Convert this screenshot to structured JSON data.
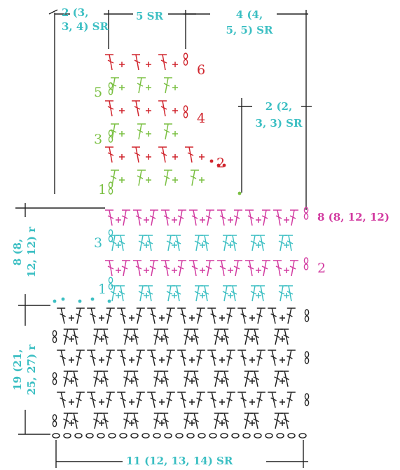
{
  "colors": {
    "black": "#222222",
    "teal": "#3cbfc3",
    "magenta": "#d23aa0",
    "green": "#7bc043",
    "red": "#d0252d"
  },
  "dimensions": {
    "top_left": "2 (3,\n3, 4) SR",
    "top_middle": "5 SR",
    "top_right": "4 (4,\n5, 5) SR",
    "right_step": "2 (2,\n3, 3) SR",
    "side_upper": "8 (8,\n12, 12) r",
    "side_lower": "19 (21,\n25, 27) r",
    "bottom": "11 (12, 13, 14) SR",
    "row_count_magenta": "8 (8, 12, 12)"
  },
  "row_numbers": {
    "red_6": "6",
    "green_5": "5",
    "red_4": "4",
    "green_3": "3",
    "red_2": "2",
    "green_1": "1",
    "teal_3": "3",
    "magenta_2": "2",
    "teal_1": "1"
  }
}
